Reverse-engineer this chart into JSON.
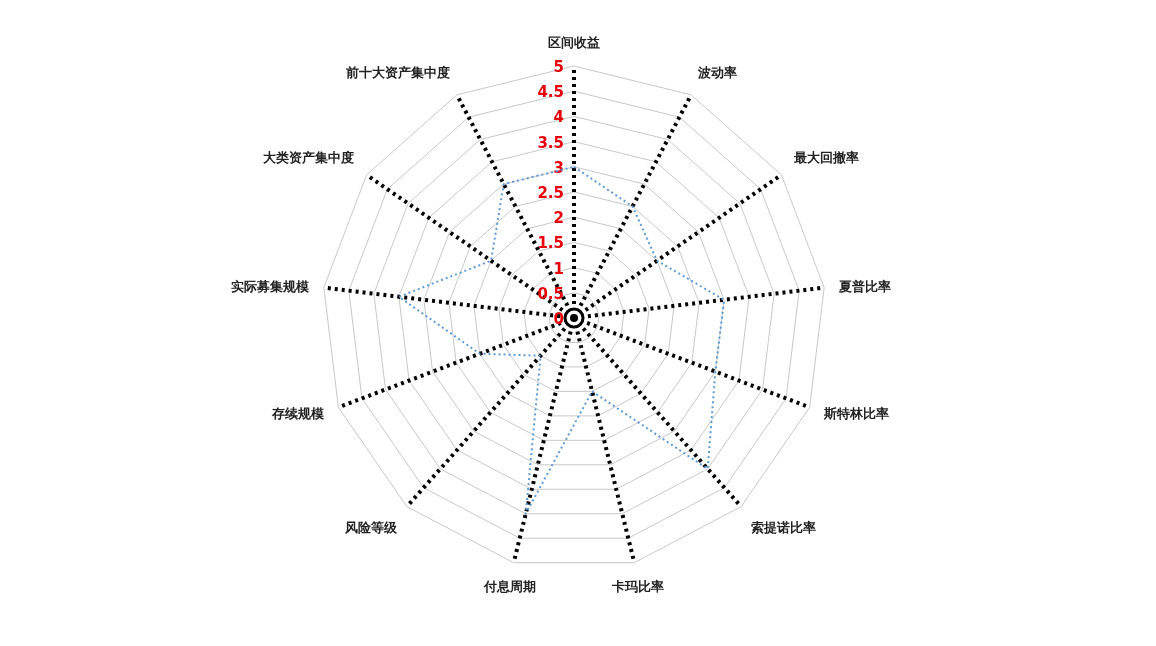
{
  "chart_data": {
    "type": "radar",
    "categories": [
      "区间收益",
      "波动率",
      "最大回撤率",
      "夏普比率",
      "斯特林比率",
      "索提诺比率",
      "卡玛比率",
      "付息周期",
      "风险等级",
      "存续规模",
      "实际募集规模",
      "大类资产集中度",
      "前十大资产集中度"
    ],
    "series": [
      {
        "color": "#5b9bd5",
        "values": [
          3,
          2.5,
          2,
          3,
          3,
          4,
          1.5,
          4,
          1,
          2,
          3.5,
          2,
          3
        ]
      }
    ],
    "ylim": [
      0,
      5
    ],
    "yticks": [
      0,
      0.5,
      1,
      1.5,
      2,
      2.5,
      3,
      3.5,
      4,
      4.5,
      5
    ],
    "grid": true,
    "line_style": "dotted",
    "marker": "none"
  }
}
